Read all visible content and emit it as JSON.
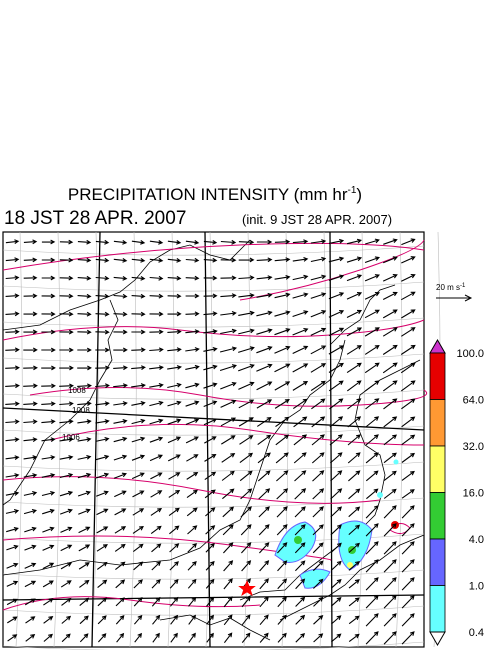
{
  "header": {
    "title": "PRECIPITATION INTENSITY (mm hr",
    "title_sup": "-1",
    "title_end": ")",
    "valid_time": "18 JST 28 APR. 2007",
    "init_time": "(init. 9 JST 28 APR. 2007)"
  },
  "vector_scale": {
    "label": "20 m s",
    "sup": "-1"
  },
  "contour_labels": [
    "1008",
    "1008",
    "1006"
  ],
  "colorbar": {
    "labels": [
      "100.0",
      "64.0",
      "32.0",
      "16.0",
      "4.0",
      "1.0",
      "0.4"
    ],
    "colors": [
      "#cc33cc",
      "#e60000",
      "#ff9933",
      "#ffff66",
      "#33cc33",
      "#6666ff",
      "#66ffff",
      "#ffffff"
    ]
  }
}
